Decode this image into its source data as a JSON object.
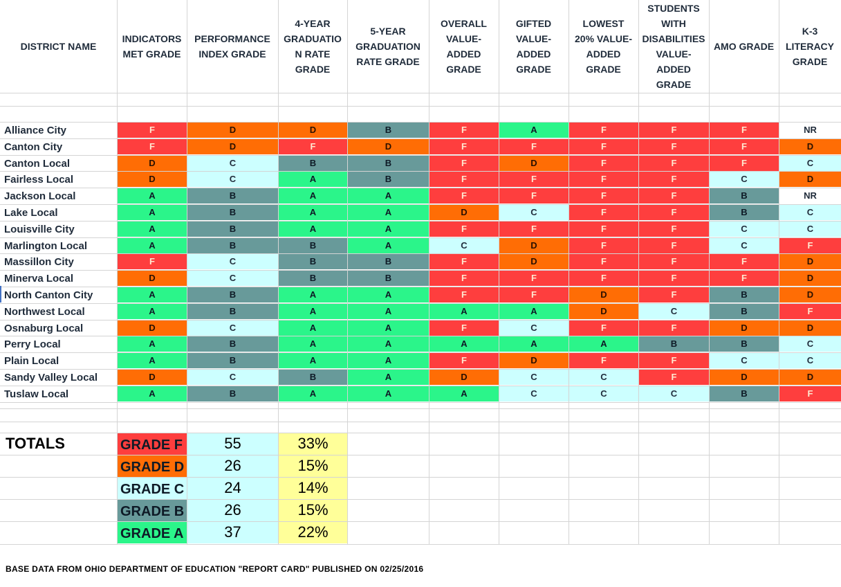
{
  "headers": [
    "DISTRICT NAME",
    "INDICATORS MET GRADE",
    "PERFORMANCE INDEX GRADE",
    "4-YEAR GRADUATIO N RATE GRADE",
    "5-YEAR GRADUATION RATE GRADE",
    "OVERALL VALUE-ADDED GRADE",
    "GIFTED VALUE-ADDED GRADE",
    "LOWEST 20% VALUE-ADDED GRADE",
    "STUDENTS WITH DISABILITIES VALUE-ADDED GRADE",
    "AMO GRADE",
    "K-3 LITERACY GRADE"
  ],
  "header_lines": [
    [
      "DISTRICT NAME"
    ],
    [
      "INDICATORS",
      "MET GRADE"
    ],
    [
      "PERFORMANCE",
      "INDEX GRADE"
    ],
    [
      "4-YEAR",
      "GRADUATIO",
      "N RATE",
      "GRADE"
    ],
    [
      "5-YEAR",
      "GRADUATION",
      "RATE GRADE"
    ],
    [
      "OVERALL",
      "VALUE-",
      "ADDED",
      "GRADE"
    ],
    [
      "GIFTED",
      "VALUE-",
      "ADDED",
      "GRADE"
    ],
    [
      "LOWEST",
      "20% VALUE-",
      "ADDED",
      "GRADE"
    ],
    [
      "STUDENTS",
      "WITH",
      "DISABILITIES",
      "VALUE-",
      "ADDED",
      "GRADE"
    ],
    [
      "AMO GRADE"
    ],
    [
      "K-3",
      "LITERACY",
      "GRADE"
    ]
  ],
  "rows": [
    {
      "district": "Alliance City",
      "grades": [
        "F",
        "D",
        "D",
        "B",
        "F",
        "A",
        "F",
        "F",
        "F",
        "NR"
      ]
    },
    {
      "district": "Canton City",
      "grades": [
        "F",
        "D",
        "F",
        "D",
        "F",
        "F",
        "F",
        "F",
        "F",
        "D"
      ]
    },
    {
      "district": "Canton Local",
      "grades": [
        "D",
        "C",
        "B",
        "B",
        "F",
        "D",
        "F",
        "F",
        "F",
        "C"
      ]
    },
    {
      "district": "Fairless Local",
      "grades": [
        "D",
        "C",
        "A",
        "B",
        "F",
        "F",
        "F",
        "F",
        "C",
        "D"
      ]
    },
    {
      "district": "Jackson Local",
      "grades": [
        "A",
        "B",
        "A",
        "A",
        "F",
        "F",
        "F",
        "F",
        "B",
        "NR"
      ]
    },
    {
      "district": "Lake Local",
      "grades": [
        "A",
        "B",
        "A",
        "A",
        "D",
        "C",
        "F",
        "F",
        "B",
        "C"
      ]
    },
    {
      "district": "Louisville City",
      "grades": [
        "A",
        "B",
        "A",
        "A",
        "F",
        "F",
        "F",
        "F",
        "C",
        "C"
      ]
    },
    {
      "district": "Marlington Local",
      "grades": [
        "A",
        "B",
        "B",
        "A",
        "C",
        "D",
        "F",
        "F",
        "C",
        "F"
      ]
    },
    {
      "district": "Massillon City",
      "grades": [
        "F",
        "C",
        "B",
        "B",
        "F",
        "D",
        "F",
        "F",
        "F",
        "D"
      ]
    },
    {
      "district": "Minerva Local",
      "grades": [
        "D",
        "C",
        "B",
        "B",
        "F",
        "F",
        "F",
        "F",
        "F",
        "D"
      ]
    },
    {
      "district": "North Canton City",
      "grades": [
        "A",
        "B",
        "A",
        "A",
        "F",
        "F",
        "D",
        "F",
        "B",
        "D"
      ]
    },
    {
      "district": "Northwest Local",
      "grades": [
        "A",
        "B",
        "A",
        "A",
        "A",
        "A",
        "D",
        "C",
        "B",
        "F"
      ]
    },
    {
      "district": "Osnaburg Local",
      "grades": [
        "D",
        "C",
        "A",
        "A",
        "F",
        "C",
        "F",
        "F",
        "D",
        "D"
      ]
    },
    {
      "district": "Perry Local",
      "grades": [
        "A",
        "B",
        "A",
        "A",
        "A",
        "A",
        "A",
        "B",
        "B",
        "C"
      ]
    },
    {
      "district": "Plain Local",
      "grades": [
        "A",
        "B",
        "A",
        "A",
        "F",
        "D",
        "F",
        "F",
        "C",
        "C"
      ]
    },
    {
      "district": "Sandy Valley Local",
      "grades": [
        "D",
        "C",
        "B",
        "A",
        "D",
        "C",
        "C",
        "F",
        "D",
        "D"
      ]
    },
    {
      "district": "Tuslaw Local",
      "grades": [
        "A",
        "B",
        "A",
        "A",
        "A",
        "C",
        "C",
        "C",
        "B",
        "F"
      ]
    }
  ],
  "grade_colors": {
    "F": {
      "bg": "#fe3e3e",
      "fg": "#ffe8d0"
    },
    "D": {
      "bg": "#ff6d05",
      "fg": "#2a1000"
    },
    "C": {
      "bg": "#ccffff",
      "fg": "#1f2b3a"
    },
    "B": {
      "bg": "#689a9a",
      "fg": "#0e1a26"
    },
    "A": {
      "bg": "#2bf58a",
      "fg": "#0e1a26"
    },
    "NR": {
      "bg": "#ffffff",
      "fg": "#1f2b3a"
    }
  },
  "totals": {
    "title": "TOTALS",
    "items": [
      {
        "label": "GRADE F",
        "grade": "F",
        "count": "55",
        "percent": "33%"
      },
      {
        "label": "GRADE D",
        "grade": "D",
        "count": "26",
        "percent": "15%"
      },
      {
        "label": "GRADE C",
        "grade": "C",
        "count": "24",
        "percent": "14%"
      },
      {
        "label": "GRADE B",
        "grade": "B",
        "count": "26",
        "percent": "15%"
      },
      {
        "label": "GRADE A",
        "grade": "A",
        "count": "37",
        "percent": "22%"
      }
    ]
  },
  "footer": "BASE DATA FROM OHIO DEPARTMENT OF EDUCATION \"REPORT CARD\" PUBLISHED ON 02/25/2016"
}
